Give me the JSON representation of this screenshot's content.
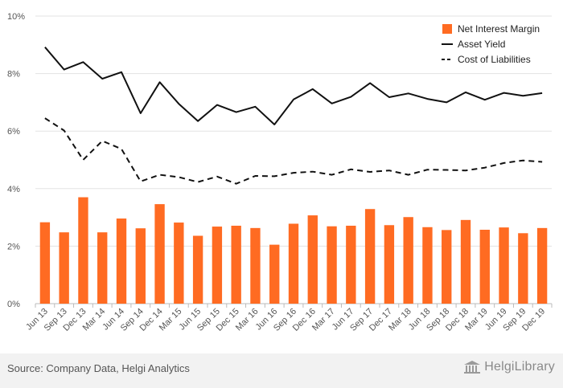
{
  "chart_data": {
    "type": "bar",
    "categories": [
      "Jun 13",
      "Sep 13",
      "Dec 13",
      "Mar 14",
      "Jun 14",
      "Sep 14",
      "Dec 14",
      "Mar 15",
      "Jun 15",
      "Sep 15",
      "Dec 15",
      "Mar 16",
      "Jun 16",
      "Sep 16",
      "Dec 16",
      "Mar 17",
      "Jun 17",
      "Sep 17",
      "Dec 17",
      "Mar 18",
      "Jun 18",
      "Sep 18",
      "Dec 18",
      "Mar 19",
      "Jun 19",
      "Sep 19",
      "Dec 19"
    ],
    "series": [
      {
        "name": "Net Interest Margin",
        "type": "bar",
        "color": "#ff6b22",
        "values": [
          2.83,
          2.48,
          3.7,
          2.48,
          2.96,
          2.62,
          3.46,
          2.82,
          2.36,
          2.68,
          2.71,
          2.63,
          2.05,
          2.78,
          3.07,
          2.69,
          2.71,
          3.29,
          2.73,
          3.01,
          2.66,
          2.56,
          2.91,
          2.57,
          2.65,
          2.45,
          2.63
        ]
      },
      {
        "name": "Asset Yield",
        "type": "line",
        "style": "solid",
        "color": "#111111",
        "values": [
          8.92,
          8.14,
          8.4,
          7.82,
          8.05,
          6.62,
          7.7,
          6.95,
          6.35,
          6.91,
          6.66,
          6.85,
          6.23,
          7.1,
          7.46,
          6.96,
          7.19,
          7.67,
          7.18,
          7.31,
          7.12,
          7.0,
          7.35,
          7.09,
          7.33,
          7.23,
          7.32
        ]
      },
      {
        "name": "Cost of Liabilities",
        "type": "line",
        "style": "dashed",
        "color": "#111111",
        "values": [
          6.45,
          6.02,
          5.0,
          5.66,
          5.38,
          4.25,
          4.48,
          4.4,
          4.23,
          4.42,
          4.17,
          4.44,
          4.43,
          4.55,
          4.59,
          4.48,
          4.67,
          4.58,
          4.63,
          4.48,
          4.66,
          4.65,
          4.63,
          4.73,
          4.89,
          4.98,
          4.93
        ]
      }
    ],
    "ylim": [
      0,
      10
    ],
    "yticks": [
      0,
      2,
      4,
      6,
      8,
      10
    ],
    "ytick_labels": [
      "0%",
      "2%",
      "4%",
      "6%",
      "8%",
      "10%"
    ],
    "grid": true,
    "legend_position": "top-right"
  },
  "footer": {
    "source": "Source: Company Data, Helgi Analytics",
    "brand": "HelgiLibrary"
  }
}
